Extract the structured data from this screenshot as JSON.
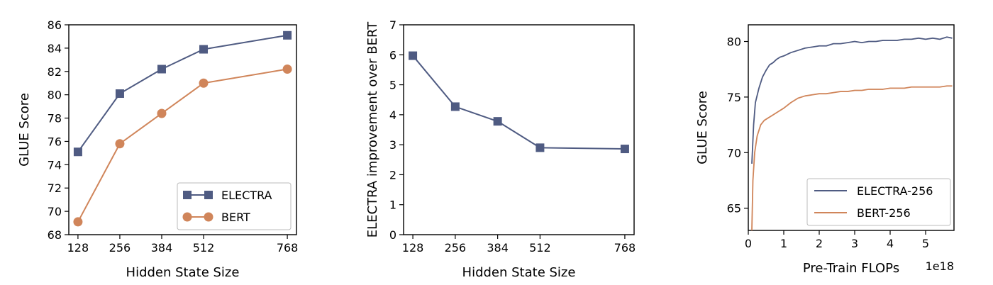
{
  "colors": {
    "electra": "#4f5b82",
    "bert": "#d0855a"
  },
  "chart_data": [
    {
      "id": "glue-vs-hidden",
      "type": "line",
      "markers": true,
      "xlabel": "Hidden State Size",
      "ylabel": "GLUE Score",
      "x": [
        128,
        256,
        384,
        512,
        768
      ],
      "xticks": [
        128,
        256,
        384,
        512,
        768
      ],
      "xticklabels": [
        "128",
        "256",
        "384",
        "512",
        "768"
      ],
      "xlim": [
        100,
        796
      ],
      "ylim": [
        68,
        86
      ],
      "yticks": [
        68,
        70,
        72,
        74,
        76,
        78,
        80,
        82,
        84,
        86
      ],
      "yticklabels": [
        "68",
        "70",
        "72",
        "74",
        "76",
        "78",
        "80",
        "82",
        "84",
        "86"
      ],
      "legend_position": "lower-right",
      "series": [
        {
          "name": "ELECTRA",
          "color": "#4f5b82",
          "marker": "square",
          "values": [
            75.1,
            80.1,
            82.2,
            83.9,
            85.1
          ]
        },
        {
          "name": "BERT",
          "color": "#d0855a",
          "marker": "circle",
          "values": [
            69.1,
            75.8,
            78.4,
            81.0,
            82.2
          ]
        }
      ]
    },
    {
      "id": "improvement-vs-hidden",
      "type": "line",
      "markers": true,
      "xlabel": "Hidden State Size",
      "ylabel": "ELECTRA improvement over BERT",
      "x": [
        128,
        256,
        384,
        512,
        768
      ],
      "xticks": [
        128,
        256,
        384,
        512,
        768
      ],
      "xticklabels": [
        "128",
        "256",
        "384",
        "512",
        "768"
      ],
      "xlim": [
        100,
        796
      ],
      "ylim": [
        0,
        7
      ],
      "yticks": [
        0,
        1,
        2,
        3,
        4,
        5,
        6,
        7
      ],
      "yticklabels": [
        "0",
        "1",
        "2",
        "3",
        "4",
        "5",
        "6",
        "7"
      ],
      "series": [
        {
          "name": "",
          "color": "#4f5b82",
          "marker": "square",
          "values": [
            5.97,
            4.27,
            3.78,
            2.9,
            2.86
          ]
        }
      ]
    },
    {
      "id": "glue-vs-flops",
      "type": "line",
      "markers": false,
      "xlabel": "Pre-Train FLOPs",
      "x_offset_label": "1e18",
      "ylabel": "GLUE Score",
      "xlim": [
        0,
        5.8
      ],
      "ylim": [
        63,
        81.5
      ],
      "xticks": [
        0,
        1,
        2,
        3,
        4,
        5
      ],
      "xticklabels": [
        "0",
        "1",
        "2",
        "3",
        "4",
        "5"
      ],
      "yticks": [
        65,
        70,
        75,
        80
      ],
      "yticklabels": [
        "65",
        "70",
        "75",
        "80"
      ],
      "legend_position": "lower-right",
      "series": [
        {
          "name": "ELECTRA-256",
          "color": "#4f5b82",
          "x": [
            0.1,
            0.15,
            0.2,
            0.3,
            0.4,
            0.5,
            0.6,
            0.7,
            0.8,
            0.9,
            1.0,
            1.2,
            1.4,
            1.6,
            1.8,
            2.0,
            2.2,
            2.4,
            2.6,
            2.8,
            3.0,
            3.2,
            3.4,
            3.6,
            3.8,
            4.0,
            4.2,
            4.4,
            4.6,
            4.8,
            5.0,
            5.2,
            5.4,
            5.6,
            5.75
          ],
          "values": [
            69.0,
            72.5,
            74.5,
            75.8,
            76.8,
            77.4,
            77.9,
            78.1,
            78.4,
            78.6,
            78.7,
            79.0,
            79.2,
            79.4,
            79.5,
            79.6,
            79.6,
            79.8,
            79.8,
            79.9,
            80.0,
            79.9,
            80.0,
            80.0,
            80.1,
            80.1,
            80.1,
            80.2,
            80.2,
            80.3,
            80.2,
            80.3,
            80.2,
            80.4,
            80.3
          ]
        },
        {
          "name": "BERT-256",
          "color": "#d0855a",
          "x": [
            0.1,
            0.13,
            0.18,
            0.25,
            0.35,
            0.45,
            0.55,
            0.7,
            0.85,
            1.0,
            1.2,
            1.4,
            1.6,
            1.8,
            2.0,
            2.2,
            2.4,
            2.6,
            2.8,
            3.0,
            3.2,
            3.4,
            3.6,
            3.8,
            4.0,
            4.2,
            4.4,
            4.6,
            4.8,
            5.0,
            5.2,
            5.4,
            5.6,
            5.75
          ],
          "values": [
            63.0,
            67.5,
            70.0,
            71.5,
            72.5,
            72.9,
            73.1,
            73.4,
            73.7,
            74.0,
            74.5,
            74.9,
            75.1,
            75.2,
            75.3,
            75.3,
            75.4,
            75.5,
            75.5,
            75.6,
            75.6,
            75.7,
            75.7,
            75.7,
            75.8,
            75.8,
            75.8,
            75.9,
            75.9,
            75.9,
            75.9,
            75.9,
            76.0,
            76.0
          ]
        }
      ]
    }
  ]
}
